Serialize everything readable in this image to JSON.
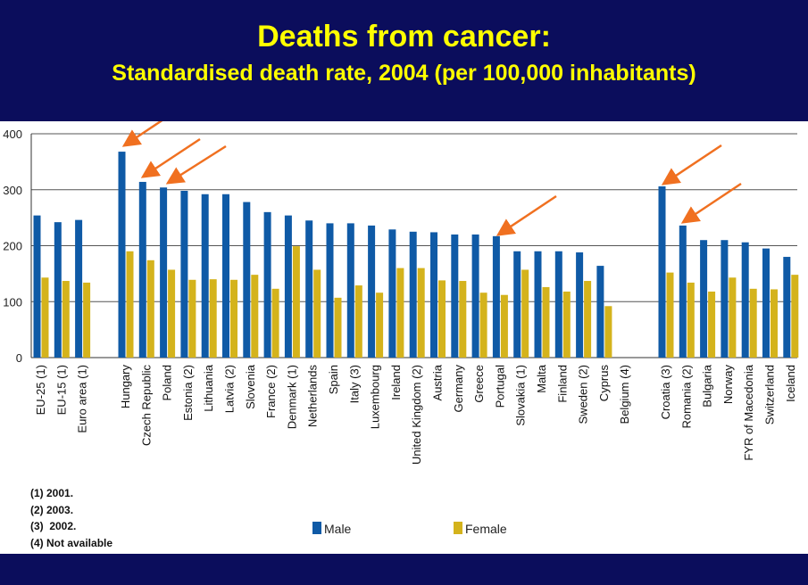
{
  "header": {
    "title": "Deaths from cancer:",
    "subtitle": "Standardised death rate, 2004 (per 100,000 inhabitants)"
  },
  "footnotes": [
    "(1) 2001.",
    "(2) 2003.",
    "(3)  2002.",
    "(4) Not available"
  ],
  "colors": {
    "background_band": "#0b0d5c",
    "title": "#ffff00",
    "male": "#0f5aa6",
    "female": "#d4b31c",
    "arrow": "#f07020",
    "grid": "#555555"
  },
  "chart_data": {
    "type": "bar",
    "title": "Standardised death rate, 2004 (per 100,000 inhabitants)",
    "ylim": [
      0,
      400
    ],
    "yticks": [
      0,
      100,
      200,
      300,
      400
    ],
    "legend": {
      "placement": "bottom",
      "labels": [
        "Male",
        "Female"
      ]
    },
    "groups": [
      [
        "EU-25 (1)",
        "EU-15 (1)",
        "Euro area (1)"
      ],
      [
        "Hungary",
        "Czech Republic",
        "Poland",
        "Estonia (2)",
        "Lithuania",
        "Latvia (2)",
        "Slovenia",
        "France (2)",
        "Denmark (1)",
        "Netherlands",
        "Spain",
        "Italy (3)",
        "Luxembourg",
        "Ireland",
        "United Kingdom (2)",
        "Austria",
        "Germany",
        "Greece",
        "Portugal",
        "Slovakia (1)",
        "Malta",
        "Finland",
        "Sweden (2)",
        "Cyprus",
        "Belgium (4)"
      ],
      [
        "Croatia (3)",
        "Romania (2)",
        "Bulgaria",
        "Norway",
        "FYR of Macedonia",
        "Switzerland",
        "Iceland"
      ]
    ],
    "series": [
      {
        "name": "Male",
        "values": [
          [
            254,
            242,
            246
          ],
          [
            368,
            314,
            304,
            298,
            292,
            292,
            278,
            260,
            254,
            245,
            240,
            240,
            236,
            229,
            225,
            224,
            220,
            220,
            217,
            190,
            190,
            190,
            188,
            164,
            null
          ],
          [
            306,
            236,
            210,
            210,
            206,
            195,
            180
          ]
        ]
      },
      {
        "name": "Female",
        "values": [
          [
            143,
            137,
            134
          ],
          [
            190,
            174,
            157,
            139,
            140,
            139,
            148,
            123,
            199,
            157,
            107,
            129,
            116,
            160,
            160,
            138,
            137,
            116,
            112,
            157,
            126,
            118,
            137,
            92,
            null
          ],
          [
            152,
            134,
            118,
            143,
            123,
            122,
            148
          ]
        ]
      }
    ],
    "arrows_point_to": [
      "Hungary",
      "Czech Republic",
      "Poland",
      "Portugal",
      "Croatia (3)",
      "Romania (2)"
    ]
  }
}
